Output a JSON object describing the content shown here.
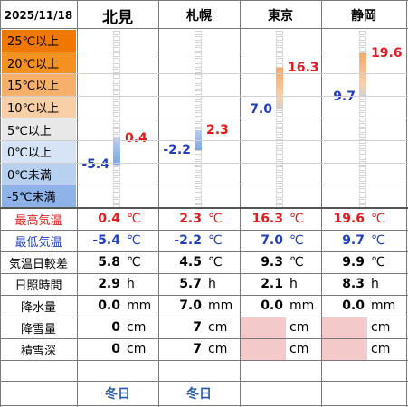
{
  "header": {
    "date": "2025/11/18",
    "cities": [
      "北見",
      "札幌",
      "東京",
      "静岡"
    ]
  },
  "colors": {
    "high_red": "#e31a1c",
    "low_blue": "#1f3fbf",
    "band_warm": [
      "#f07800",
      "#f49120",
      "#f6b06a",
      "#f8cfa6"
    ],
    "band_neutral": "#e8e8e8",
    "band_cool": [
      "#d6e4f6",
      "#b8d1f0",
      "#8eb3e8"
    ],
    "nodata": "#f4c9c9",
    "note_blue": "#2a5caa"
  },
  "temperature_bands": [
    "25℃以上",
    "20℃以上",
    "15℃以上",
    "10℃以上",
    "5℃以上",
    "0℃以上",
    "0℃未満",
    "-5℃未満"
  ],
  "chart": {
    "stations": [
      {
        "name": "北見",
        "high": "0.4",
        "low": "-5.4",
        "high_value": 0.4,
        "low_value": -5.4
      },
      {
        "name": "札幌",
        "high": "2.3",
        "low": "-2.2",
        "high_value": 2.3,
        "low_value": -2.2
      },
      {
        "name": "東京",
        "high": "16.3",
        "low": "7.0",
        "high_value": 16.3,
        "low_value": 7.0
      },
      {
        "name": "静岡",
        "high": "19.6",
        "low": "9.7",
        "high_value": 19.6,
        "low_value": 9.7
      }
    ]
  },
  "rows": [
    {
      "label": "最高気温",
      "label_color": "high_red",
      "unit": "℃",
      "values": [
        "0.4",
        "2.3",
        "16.3",
        "19.6"
      ]
    },
    {
      "label": "最低気温",
      "label_color": "low_blue",
      "unit": "℃",
      "values": [
        "-5.4",
        "-2.2",
        "7.0",
        "9.7"
      ]
    },
    {
      "label": "気温日較差",
      "unit": "℃",
      "values": [
        "5.8",
        "4.5",
        "9.3",
        "9.9"
      ]
    },
    {
      "label": "日照時間",
      "unit": "h",
      "values": [
        "2.9",
        "5.7",
        "2.1",
        "8.3"
      ]
    },
    {
      "label": "降水量",
      "unit": "mm",
      "values": [
        "0.0",
        "7.0",
        "0.0",
        "0.0"
      ]
    },
    {
      "label": "降雪量",
      "unit": "cm",
      "values": [
        "0",
        "7",
        "",
        ""
      ]
    },
    {
      "label": "積雪深",
      "unit": "cm",
      "values": [
        "0",
        "7",
        "",
        ""
      ]
    }
  ],
  "notes": [
    "冬日",
    "冬日",
    "",
    ""
  ]
}
